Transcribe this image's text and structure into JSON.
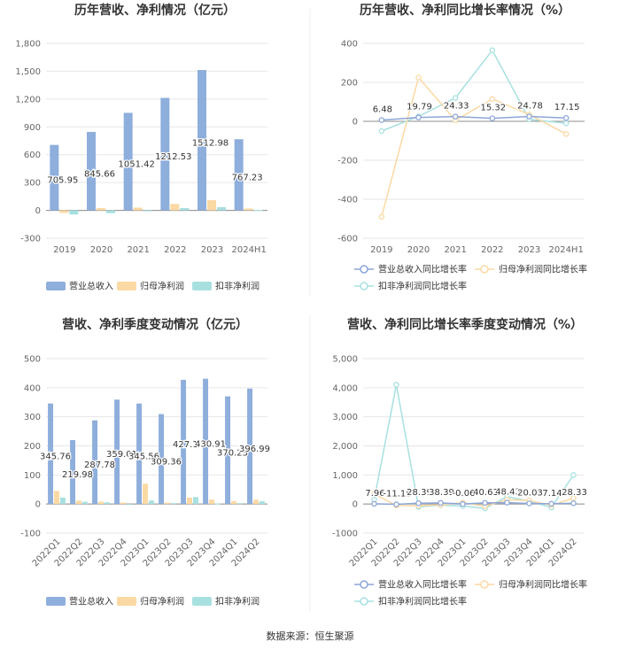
{
  "footer": {
    "source": "数据来源：恒生聚源"
  },
  "colors": {
    "revenue": "#8eaedc",
    "net_profit": "#fbd9a4",
    "deducted": "#a8e0e0"
  },
  "chart_data": [
    {
      "type": "bar",
      "title": "历年营收、净利情况（亿元）",
      "categories": [
        "2019",
        "2020",
        "2021",
        "2022",
        "2023",
        "2024H1"
      ],
      "ylim": [
        -300,
        1800
      ],
      "yticks": [
        -300,
        0,
        300,
        600,
        900,
        "1,200",
        "1,500",
        "1,800"
      ],
      "series": [
        {
          "name": "营业总收入",
          "values": [
            705.95,
            845.66,
            1051.42,
            1212.53,
            1512.98,
            767.23
          ],
          "labels": [
            "705.95",
            "845.66",
            "1051.42",
            "1212.53",
            "1512.98",
            "767.23"
          ]
        },
        {
          "name": "归母净利润",
          "values": [
            -28,
            25,
            30,
            70,
            110,
            20
          ]
        },
        {
          "name": "扣非净利润",
          "values": [
            -45,
            -30,
            -8,
            25,
            35,
            5
          ]
        }
      ]
    },
    {
      "type": "line",
      "title": "历年营收、净利同比增长率情况（%）",
      "categories": [
        "2019",
        "2020",
        "2021",
        "2022",
        "2023",
        "2024H1"
      ],
      "ylim": [
        -600,
        400
      ],
      "yticks": [
        -600,
        -400,
        -200,
        0,
        200,
        400
      ],
      "series": [
        {
          "name": "营业总收入同比增长率",
          "values": [
            6.48,
            19.79,
            24.33,
            15.32,
            24.78,
            17.15
          ],
          "labels": [
            "6.48",
            "19.79",
            "24.33",
            "15.32",
            "24.78",
            "17.15"
          ]
        },
        {
          "name": "归母净利润同比增长率",
          "values": [
            -490,
            225,
            5,
            115,
            35,
            -65
          ]
        },
        {
          "name": "扣非净利润同比增长率",
          "values": [
            -50,
            25,
            120,
            365,
            10,
            -10
          ]
        }
      ]
    },
    {
      "type": "bar",
      "title": "营收、净利季度变动情况（亿元）",
      "categories": [
        "2022Q1",
        "2022Q2",
        "2022Q3",
        "2022Q4",
        "2023Q1",
        "2023Q2",
        "2023Q3",
        "2023Q4",
        "2024Q1",
        "2024Q2"
      ],
      "ylim": [
        -100,
        500
      ],
      "yticks": [
        -100,
        0,
        100,
        200,
        300,
        400,
        500
      ],
      "series": [
        {
          "name": "营业总收入",
          "values": [
            345.76,
            219.98,
            287.78,
            359.01,
            345.56,
            309.36,
            427.17,
            430.91,
            370.23,
            396.99
          ],
          "labels": [
            "345.76",
            "219.98",
            "287.78",
            "359.01",
            "345.56",
            "309.36",
            "427.17",
            "430.91",
            "370.23",
            "396.99"
          ]
        },
        {
          "name": "归母净利润",
          "values": [
            45,
            12,
            8,
            5,
            70,
            5,
            22,
            15,
            10,
            15
          ]
        },
        {
          "name": "扣非净利润",
          "values": [
            22,
            8,
            6,
            -3,
            12,
            3,
            24,
            2,
            3,
            10
          ]
        }
      ]
    },
    {
      "type": "line",
      "title": "营收、净利同比增长率季度变动情况（%）",
      "categories": [
        "2022Q1",
        "2022Q2",
        "2022Q3",
        "2022Q4",
        "2023Q1",
        "2023Q2",
        "2023Q3",
        "2023Q4",
        "2024Q1",
        "2024Q2"
      ],
      "ylim": [
        -1000,
        5000
      ],
      "yticks": [
        -1000,
        0,
        "1,000",
        "2,000",
        "3,000",
        "4,000",
        "5,000"
      ],
      "series": [
        {
          "name": "营业总收入同比增长率",
          "values": [
            7.96,
            -11.15,
            28.39,
            38.39,
            -0.06,
            40.63,
            48.43,
            20.03,
            7.14,
            28.33
          ],
          "labels": [
            "7.96",
            "-11.15",
            "28.39",
            "38.39",
            "-0.06",
            "40.63",
            "48.43",
            "20.03",
            "7.14",
            "28.33"
          ]
        },
        {
          "name": "归母净利润同比增长率",
          "values": [
            350,
            -50,
            -60,
            -30,
            50,
            -80,
            150,
            120,
            -40,
            200
          ]
        },
        {
          "name": "扣非净利润同比增长率",
          "values": [
            150,
            4100,
            -100,
            -40,
            -70,
            -150,
            250,
            100,
            -120,
            1000
          ]
        }
      ]
    }
  ]
}
